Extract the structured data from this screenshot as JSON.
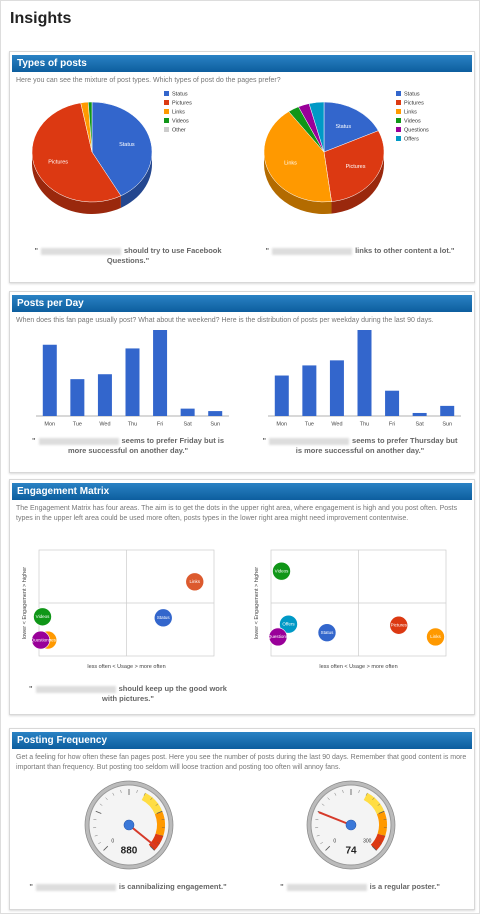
{
  "title": "Insights",
  "sections": [
    {
      "title": "Types of posts",
      "description": "Here you can see the mixture of post types. Which types of post do the pages prefer?",
      "charts": [
        {
          "type": "pie",
          "categories": [
            "Status",
            "Pictures",
            "Links",
            "Videos",
            "Other"
          ],
          "values": [
            42,
            55,
            2,
            1,
            0
          ],
          "colors": [
            "#3366cc",
            "#dc3912",
            "#ff9900",
            "#109618",
            "#cccccc"
          ],
          "caption": {
            "open": "\"",
            "text": "should try to use Facebook Questions.\""
          }
        },
        {
          "type": "pie",
          "categories": [
            "Status",
            "Pictures",
            "Links",
            "Videos",
            "Questions",
            "Offers"
          ],
          "values": [
            18,
            30,
            42,
            3,
            3,
            4
          ],
          "colors": [
            "#3366cc",
            "#dc3912",
            "#ff9900",
            "#109618",
            "#990099",
            "#0099c6"
          ],
          "caption": {
            "open": "\"",
            "text": "links to other content a lot.\""
          }
        }
      ]
    },
    {
      "title": "Posts per Day",
      "description": "When does this fan page usually post? What about the weekend? Here is the distribution of posts per weekday during the last 90 days.",
      "charts": [
        {
          "type": "bar",
          "categories": [
            "Mon",
            "Tue",
            "Wed",
            "Thu",
            "Fri",
            "Sat",
            "Sun"
          ],
          "values": [
            58,
            30,
            34,
            55,
            70,
            6,
            4
          ],
          "color": "#3366cc",
          "caption": {
            "open": "\"",
            "text": "seems to prefer Friday but is more successful on another day.\""
          }
        },
        {
          "type": "bar",
          "categories": [
            "Mon",
            "Tue",
            "Wed",
            "Thu",
            "Fri",
            "Sat",
            "Sun"
          ],
          "values": [
            40,
            50,
            55,
            85,
            25,
            3,
            10
          ],
          "color": "#3366cc",
          "caption": {
            "open": "\"",
            "text": "seems to prefer Thursday but is more successful on another day.\""
          }
        }
      ]
    },
    {
      "title": "Engagement Matrix",
      "description": "The Engagement Matrix has four areas. The aim is to get the dots in the upper right area, where engagement is high and you post often. Posts types in the upper left area could be used more often, posts types in the lower right area might need improvement contentwise.",
      "charts": [
        {
          "type": "scatter",
          "x_label": "less often < Usage > more often",
          "y_label": "lower < Engagement > higher",
          "xlim": [
            0,
            100
          ],
          "ylim": [
            0,
            100
          ],
          "points": [
            {
              "name": "Links",
              "x": 89,
              "y": 70,
              "color": "#dc5a2e"
            },
            {
              "name": "Status",
              "x": 71,
              "y": 36,
              "color": "#3366cc"
            },
            {
              "name": "Videos",
              "x": 2,
              "y": 37,
              "color": "#109618"
            },
            {
              "name": "Pictures",
              "x": 5,
              "y": 15,
              "color": "#ff9900"
            },
            {
              "name": "Questions",
              "x": 1,
              "y": 15,
              "color": "#990099"
            }
          ],
          "caption": {
            "open": "\"",
            "text": "should keep up the good work with pictures.\""
          }
        },
        {
          "type": "scatter",
          "x_label": "less often < Usage > more often",
          "y_label": "lower < Engagement > higher",
          "xlim": [
            0,
            100
          ],
          "ylim": [
            0,
            100
          ],
          "points": [
            {
              "name": "Videos",
              "x": 6,
              "y": 80,
              "color": "#109618"
            },
            {
              "name": "Offers",
              "x": 10,
              "y": 30,
              "color": "#0099c6"
            },
            {
              "name": "Questions",
              "x": 4,
              "y": 18,
              "color": "#990099"
            },
            {
              "name": "Status",
              "x": 32,
              "y": 22,
              "color": "#3366cc"
            },
            {
              "name": "Pictures",
              "x": 73,
              "y": 29,
              "color": "#dc3912"
            },
            {
              "name": "Links",
              "x": 94,
              "y": 18,
              "color": "#ff9900"
            }
          ]
        }
      ]
    },
    {
      "title": "Posting Frequency",
      "description": "Get a feeling for how often these fan pages post. Here you see the number of posts during the last 90 days. Remember that good content is more important than frequency. But posting too seldom will loose traction and posting too often will annoy fans.",
      "charts": [
        {
          "type": "gauge",
          "value": 880,
          "min": 0,
          "max": 900,
          "ticks": [
            0
          ],
          "caption": {
            "open": "\"",
            "text": "is cannibalizing engagement.\""
          }
        },
        {
          "type": "gauge",
          "value": 74,
          "min": 0,
          "max": 300,
          "ticks": [
            0,
            300
          ],
          "caption": {
            "open": "\"",
            "text": "is a regular poster.\""
          }
        }
      ]
    }
  ]
}
